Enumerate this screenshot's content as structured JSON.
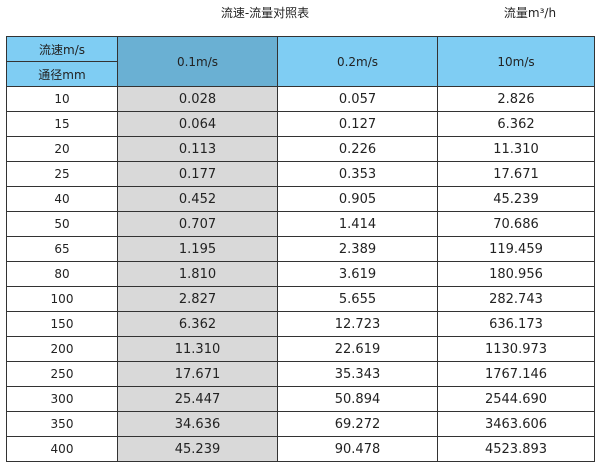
{
  "title": "流速-流量对照表",
  "unit_label": "流量m³/h",
  "table": {
    "corner_top": "流速m/s",
    "corner_bottom": "通径mm",
    "columns": [
      "0.1m/s",
      "0.2m/s",
      "10m/s"
    ],
    "rows": [
      {
        "dn": "10",
        "v": [
          "0.028",
          "0.057",
          "2.826"
        ]
      },
      {
        "dn": "15",
        "v": [
          "0.064",
          "0.127",
          "6.362"
        ]
      },
      {
        "dn": "20",
        "v": [
          "0.113",
          "0.226",
          "11.310"
        ]
      },
      {
        "dn": "25",
        "v": [
          "0.177",
          "0.353",
          "17.671"
        ]
      },
      {
        "dn": "40",
        "v": [
          "0.452",
          "0.905",
          "45.239"
        ]
      },
      {
        "dn": "50",
        "v": [
          "0.707",
          "1.414",
          "70.686"
        ]
      },
      {
        "dn": "65",
        "v": [
          "1.195",
          "2.389",
          "119.459"
        ]
      },
      {
        "dn": "80",
        "v": [
          "1.810",
          "3.619",
          "180.956"
        ]
      },
      {
        "dn": "100",
        "v": [
          "2.827",
          "5.655",
          "282.743"
        ]
      },
      {
        "dn": "150",
        "v": [
          "6.362",
          "12.723",
          "636.173"
        ]
      },
      {
        "dn": "200",
        "v": [
          "11.310",
          "22.619",
          "1130.973"
        ]
      },
      {
        "dn": "250",
        "v": [
          "17.671",
          "35.343",
          "1767.146"
        ]
      },
      {
        "dn": "300",
        "v": [
          "25.447",
          "50.894",
          "2544.690"
        ]
      },
      {
        "dn": "350",
        "v": [
          "34.636",
          "69.272",
          "3463.606"
        ]
      },
      {
        "dn": "400",
        "v": [
          "45.239",
          "90.478",
          "4523.893"
        ]
      }
    ]
  },
  "colors": {
    "header": "#7fcdf3",
    "header_selected": "#6ab0d3",
    "column_highlight": "#d9d9d9"
  }
}
